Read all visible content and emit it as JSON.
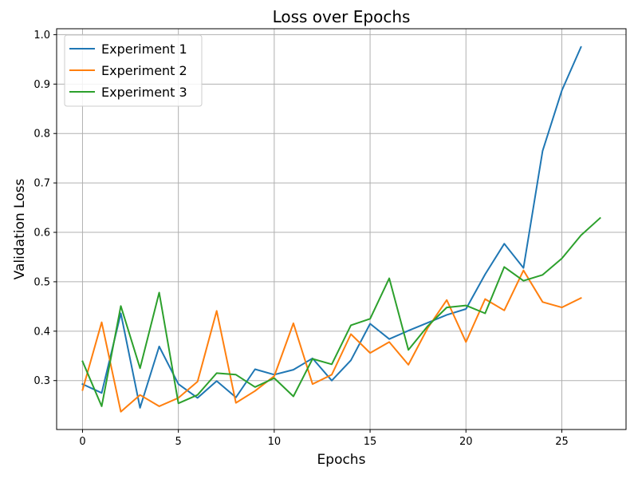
{
  "chart_data": {
    "type": "line",
    "title": "Loss over Epochs",
    "xlabel": "Epochs",
    "ylabel": "Validation Loss",
    "xlim": [
      -1.35,
      28.35
    ],
    "ylim": [
      0.201,
      1.012
    ],
    "xticks": [
      0,
      5,
      10,
      15,
      20,
      25
    ],
    "xtick_labels": [
      "0",
      "5",
      "10",
      "15",
      "20",
      "25"
    ],
    "yticks": [
      0.3,
      0.4,
      0.5,
      0.6,
      0.7,
      0.8,
      0.9,
      1.0
    ],
    "ytick_labels": [
      "0.3",
      "0.4",
      "0.5",
      "0.6",
      "0.7",
      "0.8",
      "0.9",
      "1.0"
    ],
    "grid": true,
    "legend_position": "top-left",
    "series": [
      {
        "name": "Experiment 1",
        "color": "#1f77b4",
        "x": [
          0,
          1,
          2,
          3,
          4,
          5,
          6,
          7,
          8,
          9,
          10,
          11,
          12,
          13,
          14,
          15,
          16,
          17,
          18,
          19,
          20,
          21,
          22,
          23,
          24,
          25,
          26
        ],
        "values": [
          0.293,
          0.275,
          0.436,
          0.245,
          0.369,
          0.293,
          0.265,
          0.299,
          0.266,
          0.323,
          0.312,
          0.322,
          0.345,
          0.3,
          0.341,
          0.415,
          0.384,
          0.401,
          0.417,
          0.433,
          0.445,
          0.515,
          0.577,
          0.528,
          0.765,
          0.887,
          0.975
        ]
      },
      {
        "name": "Experiment 2",
        "color": "#ff7f0e",
        "x": [
          0,
          1,
          2,
          3,
          4,
          5,
          6,
          7,
          8,
          9,
          10,
          11,
          12,
          13,
          14,
          15,
          16,
          17,
          18,
          19,
          20,
          21,
          22,
          23,
          24,
          25,
          26
        ],
        "values": [
          0.281,
          0.418,
          0.237,
          0.271,
          0.248,
          0.265,
          0.298,
          0.441,
          0.255,
          0.279,
          0.309,
          0.416,
          0.293,
          0.312,
          0.394,
          0.356,
          0.378,
          0.332,
          0.406,
          0.463,
          0.378,
          0.465,
          0.442,
          0.523,
          0.459,
          0.448,
          0.467
        ]
      },
      {
        "name": "Experiment 3",
        "color": "#2ca02c",
        "x": [
          0,
          1,
          2,
          3,
          4,
          5,
          6,
          7,
          8,
          9,
          10,
          11,
          12,
          13,
          14,
          15,
          16,
          17,
          18,
          19,
          20,
          21,
          22,
          23,
          24,
          25,
          26,
          27
        ],
        "values": [
          0.339,
          0.248,
          0.451,
          0.325,
          0.478,
          0.254,
          0.271,
          0.315,
          0.312,
          0.287,
          0.305,
          0.268,
          0.344,
          0.333,
          0.412,
          0.425,
          0.507,
          0.362,
          0.41,
          0.448,
          0.452,
          0.436,
          0.53,
          0.502,
          0.514,
          0.547,
          0.594,
          0.629
        ]
      }
    ]
  }
}
